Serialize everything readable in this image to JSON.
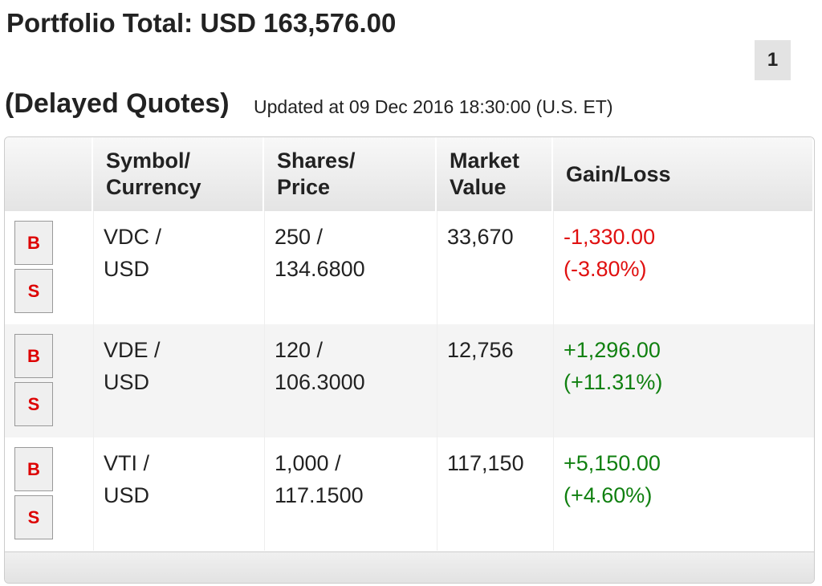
{
  "header": {
    "title": "Portfolio Total: USD 163,576.00",
    "page_button": "1",
    "heading": "(Delayed Quotes)",
    "updated": "Updated at 09 Dec 2016 18:30:00 (U.S. ET)"
  },
  "table": {
    "columns": [
      [
        "Symbol/",
        "Currency"
      ],
      [
        "Shares/",
        "Price"
      ],
      [
        "Market",
        "Value"
      ],
      [
        "Gain/Loss"
      ]
    ],
    "rows": [
      {
        "buy": "B",
        "sell": "S",
        "symbol": "VDC /",
        "currency": "USD",
        "shares": "250 /",
        "price": "134.6800",
        "market_value": "33,670",
        "gain": "-1,330.00",
        "gain_pct": "(-3.80%)"
      },
      {
        "buy": "B",
        "sell": "S",
        "symbol": "VDE /",
        "currency": "USD",
        "shares": "120 /",
        "price": "106.3000",
        "market_value": "12,756",
        "gain": "+1,296.00",
        "gain_pct": "(+11.31%)"
      },
      {
        "buy": "B",
        "sell": "S",
        "symbol": "VTI /",
        "currency": "USD",
        "shares": "1,000 /",
        "price": "117.1500",
        "market_value": "117,150",
        "gain": "+5,150.00",
        "gain_pct": "(+4.60%)"
      }
    ]
  }
}
